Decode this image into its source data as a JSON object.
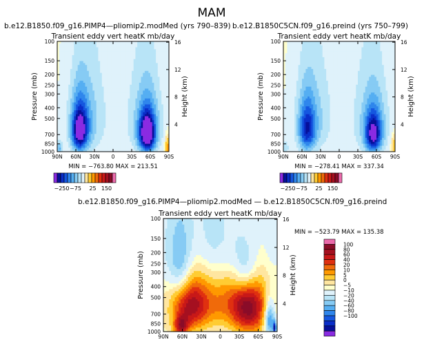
{
  "figure": {
    "season_title": "MAM",
    "palette_hot": [
      "#ffe6a0",
      "#ffcc33",
      "#ff9900",
      "#f06a0a",
      "#e03010",
      "#c81818",
      "#a51020",
      "#8a0c28",
      "#eb6aab"
    ],
    "palette_cold": [
      "#dff2fb",
      "#b8e4f7",
      "#86cbf4",
      "#55aef2",
      "#2f86ec",
      "#1557e0",
      "#0a2ec8",
      "#06109a",
      "#8a2be2"
    ]
  },
  "chart_data": [
    {
      "type": "heatmap",
      "name": "panel-left",
      "case_title": "b.e12.B1850.f09_g16.PIMP4—pliomip2.modMed  (yrs 790–839)",
      "title": "Transient eddy vert heatK mb/day",
      "xlabel": "",
      "ylabel": "Pressure  (mb)",
      "y2label": "Height  (km)",
      "x_ticks": [
        "90N",
        "60N",
        "30N",
        "0",
        "30S",
        "60S",
        "90S"
      ],
      "y_ticks": [
        100,
        150,
        200,
        250,
        300,
        400,
        500,
        700,
        850,
        1000
      ],
      "y_tick_labels": [
        "100",
        "150",
        "200",
        "250",
        "300",
        "400",
        "500",
        "700",
        "850",
        "1000"
      ],
      "height_ticks": [
        4,
        8,
        12,
        16
      ],
      "height_tick_labels": [
        "4",
        "8",
        "12",
        "16"
      ],
      "ylim": [
        1000,
        100
      ],
      "xlim": [
        90,
        -90
      ],
      "stats": "MIN = −763.80   MAX = 213.51",
      "colorbar_labels": [
        "−250",
        "−75",
        "25",
        "150"
      ],
      "fields": [
        {
          "lat": 54,
          "p": 650,
          "sx": 9,
          "sp": 220,
          "amp": -7
        },
        {
          "lat": -55,
          "p": 690,
          "sx": 9,
          "sp": 200,
          "amp": -8
        },
        {
          "lat": 45,
          "p": 520,
          "sx": 18,
          "sp": 300,
          "amp": -2.5
        },
        {
          "lat": -55,
          "p": 550,
          "sx": 18,
          "sp": 320,
          "amp": -2.5
        },
        {
          "lat": 0,
          "p": 350,
          "sx": 60,
          "sp": 700,
          "amp": -0.8
        },
        {
          "lat": -88,
          "p": 900,
          "sx": 3,
          "sp": 150,
          "amp": 3
        },
        {
          "lat": 87,
          "p": 930,
          "sx": 4,
          "sp": 100,
          "amp": -3
        }
      ]
    },
    {
      "type": "heatmap",
      "name": "panel-right",
      "case_title": "b.e12.B1850C5CN.f09_g16.preind  (yrs 750–799)",
      "title": "Transient eddy vert heatK mb/day",
      "xlabel": "",
      "ylabel": "Pressure  (mb)",
      "y2label": "Height  (km)",
      "x_ticks": [
        "90N",
        "60N",
        "30N",
        "0",
        "30S",
        "60S",
        "90S"
      ],
      "y_ticks": [
        100,
        150,
        200,
        250,
        300,
        400,
        500,
        700,
        850,
        1000
      ],
      "y_tick_labels": [
        "100",
        "150",
        "200",
        "250",
        "300",
        "400",
        "500",
        "700",
        "850",
        "1000"
      ],
      "height_ticks": [
        4,
        8,
        12,
        16
      ],
      "height_tick_labels": [
        "4",
        "8",
        "12",
        "16"
      ],
      "ylim": [
        1000,
        100
      ],
      "xlim": [
        90,
        -90
      ],
      "stats": "MIN = −278.41   MAX = 337.34",
      "colorbar_labels": [
        "−250",
        "−75",
        "25",
        "150"
      ],
      "fields": [
        {
          "lat": 52,
          "p": 640,
          "sx": 9,
          "sp": 230,
          "amp": -4.5
        },
        {
          "lat": -55,
          "p": 700,
          "sx": 9,
          "sp": 200,
          "amp": -6
        },
        {
          "lat": 45,
          "p": 520,
          "sx": 18,
          "sp": 300,
          "amp": -2.2
        },
        {
          "lat": -55,
          "p": 550,
          "sx": 18,
          "sp": 320,
          "amp": -2.5
        },
        {
          "lat": 0,
          "p": 350,
          "sx": 60,
          "sp": 700,
          "amp": -0.8
        },
        {
          "lat": -88,
          "p": 900,
          "sx": 3,
          "sp": 150,
          "amp": 2.5
        },
        {
          "lat": 87,
          "p": 930,
          "sx": 4,
          "sp": 100,
          "amp": -2
        }
      ]
    },
    {
      "type": "heatmap",
      "name": "panel-diff",
      "case_title": "b.e12.B1850.f09_g16.PIMP4—pliomip2.modMed — b.e12.B1850C5CN.f09_g16.preind",
      "title": "Transient eddy vert heatK mb/day",
      "xlabel": "",
      "ylabel": "Pressure  (mb)",
      "y2label": "Height  (km)",
      "x_ticks": [
        "90N",
        "60N",
        "30N",
        "0",
        "30S",
        "60S",
        "90S"
      ],
      "y_ticks": [
        100,
        150,
        200,
        250,
        300,
        400,
        500,
        700,
        850,
        1000
      ],
      "y_tick_labels": [
        "100",
        "150",
        "200",
        "250",
        "300",
        "400",
        "500",
        "700",
        "850",
        "1000"
      ],
      "height_ticks": [
        4,
        8,
        12,
        16
      ],
      "height_tick_labels": [
        "4",
        "8",
        "12",
        "16"
      ],
      "ylim": [
        1000,
        100
      ],
      "xlim": [
        90,
        -90
      ],
      "stats": "MIN = −523.79   MAX = 135.38",
      "colorbar_labels": [
        "100",
        "80",
        "60",
        "40",
        "20",
        "10",
        "5",
        "0",
        "−5",
        "−10",
        "−20",
        "−40",
        "−60",
        "−80",
        "−100"
      ],
      "fields": [
        {
          "lat": 48,
          "p": 560,
          "sx": 20,
          "sp": 260,
          "amp": 6
        },
        {
          "lat": -46,
          "p": 600,
          "sx": 20,
          "sp": 280,
          "amp": 6.5
        },
        {
          "lat": 0,
          "p": 500,
          "sx": 30,
          "sp": 240,
          "amp": 3
        },
        {
          "lat": 62,
          "p": 900,
          "sx": 8,
          "sp": 120,
          "amp": 5
        },
        {
          "lat": -40,
          "p": 300,
          "sx": 15,
          "sp": 120,
          "amp": -4
        },
        {
          "lat": 62,
          "p": 280,
          "sx": 14,
          "sp": 150,
          "amp": -3.5
        },
        {
          "lat": 20,
          "p": 250,
          "sx": 30,
          "sp": 200,
          "amp": -1.5
        },
        {
          "lat": 0,
          "p": 160,
          "sx": 90,
          "sp": 120,
          "amp": -1.5
        },
        {
          "lat": -78,
          "p": 780,
          "sx": 6,
          "sp": 200,
          "amp": -5
        },
        {
          "lat": -86,
          "p": 940,
          "sx": 2,
          "sp": 100,
          "amp": -6
        }
      ]
    }
  ]
}
